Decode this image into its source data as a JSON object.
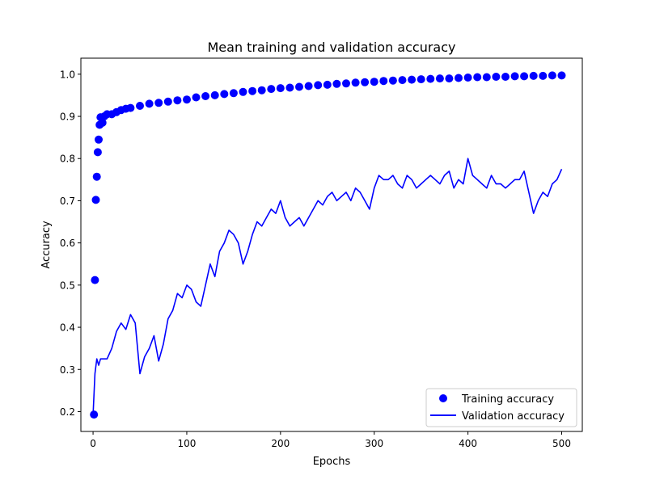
{
  "chart_data": {
    "type": "line",
    "title": "Mean training and validation accuracy",
    "xlabel": "Epochs",
    "ylabel": "Accuracy",
    "xlim": [
      -13,
      522
    ],
    "ylim": [
      0.153,
      1.038
    ],
    "xticks": [
      0,
      100,
      200,
      300,
      400,
      500
    ],
    "yticks": [
      0.2,
      0.3,
      0.4,
      0.5,
      0.6,
      0.7,
      0.8,
      0.9,
      1.0
    ],
    "xtick_labels": [
      "0",
      "100",
      "200",
      "300",
      "400",
      "500"
    ],
    "ytick_labels": [
      "0.2",
      "0.3",
      "0.4",
      "0.5",
      "0.6",
      "0.7",
      "0.8",
      "0.9",
      "1.0"
    ],
    "grid": false,
    "legend_position": "lower-right",
    "series": [
      {
        "name": "Training accuracy",
        "style": "markers",
        "color": "#0000ff",
        "x": [
          1,
          2,
          3,
          4,
          5,
          6,
          7,
          8,
          10,
          12,
          15,
          20,
          25,
          30,
          35,
          40,
          50,
          60,
          70,
          80,
          90,
          100,
          110,
          120,
          130,
          140,
          150,
          160,
          170,
          180,
          190,
          200,
          210,
          220,
          230,
          240,
          250,
          260,
          270,
          280,
          290,
          300,
          310,
          320,
          330,
          340,
          350,
          360,
          370,
          380,
          390,
          400,
          410,
          420,
          430,
          440,
          450,
          460,
          470,
          480,
          490,
          500
        ],
        "y": [
          0.193,
          0.512,
          0.702,
          0.757,
          0.815,
          0.845,
          0.88,
          0.898,
          0.885,
          0.9,
          0.905,
          0.905,
          0.91,
          0.915,
          0.918,
          0.92,
          0.925,
          0.93,
          0.932,
          0.935,
          0.938,
          0.94,
          0.945,
          0.948,
          0.95,
          0.953,
          0.955,
          0.958,
          0.96,
          0.962,
          0.965,
          0.967,
          0.968,
          0.97,
          0.972,
          0.974,
          0.975,
          0.977,
          0.978,
          0.98,
          0.981,
          0.982,
          0.984,
          0.985,
          0.986,
          0.987,
          0.988,
          0.989,
          0.99,
          0.99,
          0.991,
          0.992,
          0.993,
          0.993,
          0.994,
          0.994,
          0.995,
          0.995,
          0.996,
          0.996,
          0.997,
          0.997
        ]
      },
      {
        "name": "Validation accuracy",
        "style": "line",
        "color": "#0000ff",
        "x": [
          0,
          2,
          4,
          6,
          8,
          10,
          15,
          20,
          25,
          30,
          35,
          40,
          45,
          50,
          55,
          60,
          65,
          70,
          75,
          80,
          85,
          90,
          95,
          100,
          105,
          110,
          115,
          120,
          125,
          130,
          135,
          140,
          145,
          150,
          155,
          160,
          165,
          170,
          175,
          180,
          185,
          190,
          195,
          200,
          205,
          210,
          215,
          220,
          225,
          230,
          235,
          240,
          245,
          250,
          255,
          260,
          265,
          270,
          275,
          280,
          285,
          290,
          295,
          300,
          305,
          310,
          315,
          320,
          325,
          330,
          335,
          340,
          345,
          350,
          355,
          360,
          365,
          370,
          375,
          380,
          385,
          390,
          395,
          400,
          405,
          410,
          415,
          420,
          425,
          430,
          435,
          440,
          445,
          450,
          455,
          460,
          465,
          470,
          475,
          480,
          485,
          490,
          495,
          500
        ],
        "y": [
          0.193,
          0.29,
          0.325,
          0.31,
          0.325,
          0.325,
          0.325,
          0.35,
          0.39,
          0.41,
          0.395,
          0.43,
          0.41,
          0.29,
          0.33,
          0.35,
          0.38,
          0.32,
          0.36,
          0.42,
          0.44,
          0.48,
          0.47,
          0.5,
          0.49,
          0.46,
          0.45,
          0.5,
          0.55,
          0.52,
          0.58,
          0.6,
          0.63,
          0.62,
          0.6,
          0.55,
          0.58,
          0.62,
          0.65,
          0.64,
          0.66,
          0.68,
          0.67,
          0.7,
          0.66,
          0.64,
          0.65,
          0.66,
          0.64,
          0.66,
          0.68,
          0.7,
          0.69,
          0.71,
          0.72,
          0.7,
          0.71,
          0.72,
          0.7,
          0.73,
          0.72,
          0.7,
          0.68,
          0.73,
          0.76,
          0.75,
          0.75,
          0.76,
          0.74,
          0.73,
          0.76,
          0.75,
          0.73,
          0.74,
          0.75,
          0.76,
          0.75,
          0.74,
          0.76,
          0.77,
          0.73,
          0.75,
          0.74,
          0.8,
          0.76,
          0.75,
          0.74,
          0.73,
          0.76,
          0.74,
          0.74,
          0.73,
          0.74,
          0.75,
          0.75,
          0.77,
          0.72,
          0.67,
          0.7,
          0.72,
          0.71,
          0.74,
          0.75,
          0.775
        ]
      }
    ]
  }
}
